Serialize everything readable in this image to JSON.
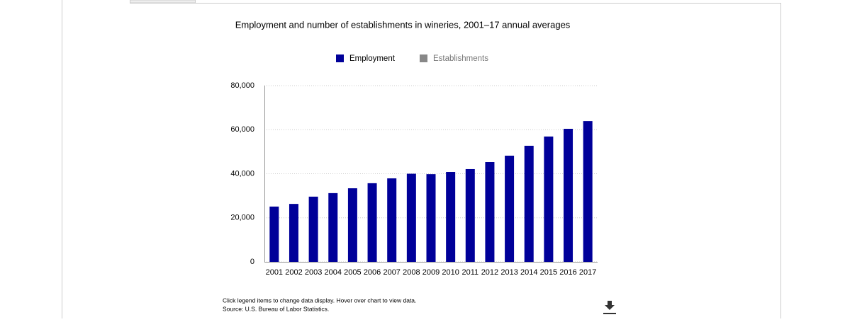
{
  "chart_data": {
    "type": "bar",
    "title": "Employment and number of establishments in wineries, 2001–17 annual averages",
    "legend": [
      {
        "name": "Employment",
        "color": "#000099"
      },
      {
        "name": "Establishments",
        "color": "#888888"
      }
    ],
    "categories": [
      "2001",
      "2002",
      "2003",
      "2004",
      "2005",
      "2006",
      "2007",
      "2008",
      "2009",
      "2010",
      "2011",
      "2012",
      "2013",
      "2014",
      "2015",
      "2016",
      "2017"
    ],
    "series": [
      {
        "name": "Employment",
        "color": "#000099",
        "values": [
          25100,
          26300,
          29600,
          31200,
          33400,
          35700,
          37900,
          40000,
          39800,
          40800,
          42100,
          45300,
          48200,
          52700,
          56900,
          60400,
          63900
        ]
      }
    ],
    "ylim": [
      0,
      80000
    ],
    "yticks": [
      0,
      {
        "value": 20000,
        "label": "20,000"
      },
      {
        "value": 40000,
        "label": "40,000"
      },
      {
        "value": 60000,
        "label": "60,000"
      },
      {
        "value": 80000,
        "label": "80,000"
      }
    ],
    "grid": true,
    "notes": [
      "Click legend items to change data display. Hover over chart to view data.",
      "Source: U.S. Bureau of Labor Statistics."
    ]
  }
}
